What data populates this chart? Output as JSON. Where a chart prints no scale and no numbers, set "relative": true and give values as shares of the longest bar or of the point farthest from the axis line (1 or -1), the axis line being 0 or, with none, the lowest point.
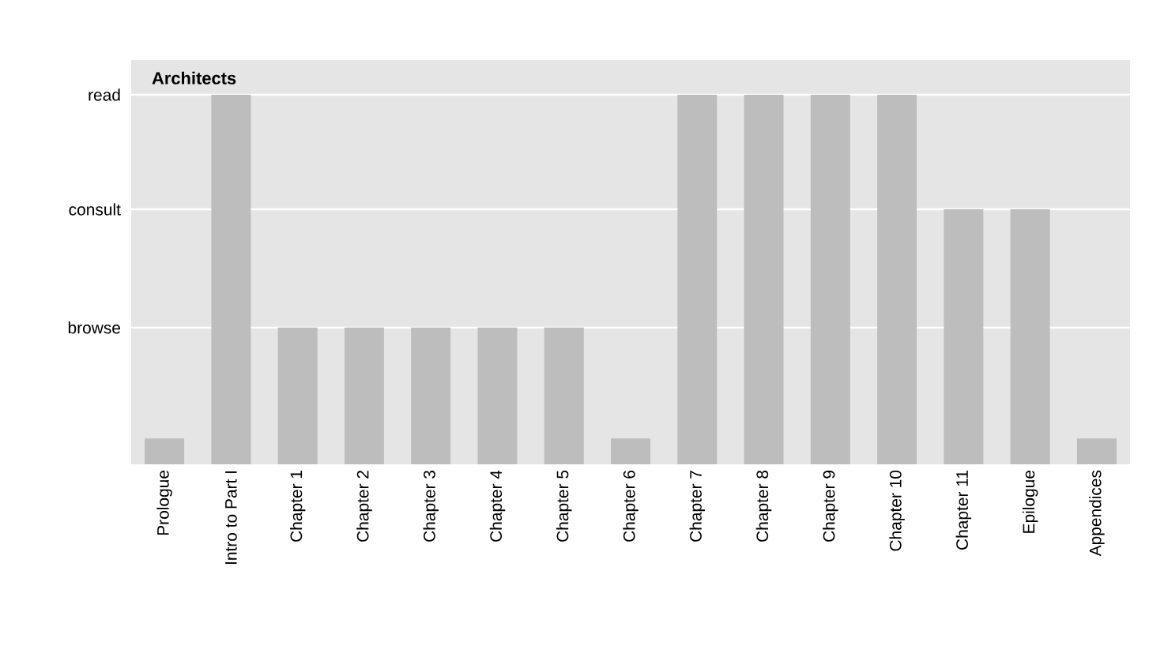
{
  "chart_data": {
    "type": "bar",
    "title": "Architects",
    "relative": true,
    "categories": [
      "Prologue",
      "Intro to Part I",
      "Chapter 1",
      "Chapter 2",
      "Chapter 3",
      "Chapter 4",
      "Chapter 5",
      "Chapter 6",
      "Chapter 7",
      "Chapter 8",
      "Chapter 9",
      "Chapter 10",
      "Chapter 11",
      "Epilogue",
      "Appendices"
    ],
    "values": [
      0.07,
      1,
      0.37,
      0.37,
      0.37,
      0.37,
      0.37,
      0.07,
      1,
      1,
      1,
      1,
      0.69,
      0.69,
      0.07
    ],
    "color": "#bdbdbd",
    "ref_lines": [
      {
        "axis": "y",
        "value": 0.37,
        "label": "browse",
        "color": "#ffffff"
      },
      {
        "axis": "y",
        "value": 0.69,
        "label": "consult",
        "color": "#ffffff"
      },
      {
        "axis": "y",
        "value": 1,
        "label": "read",
        "color": "#ffffff"
      }
    ]
  }
}
